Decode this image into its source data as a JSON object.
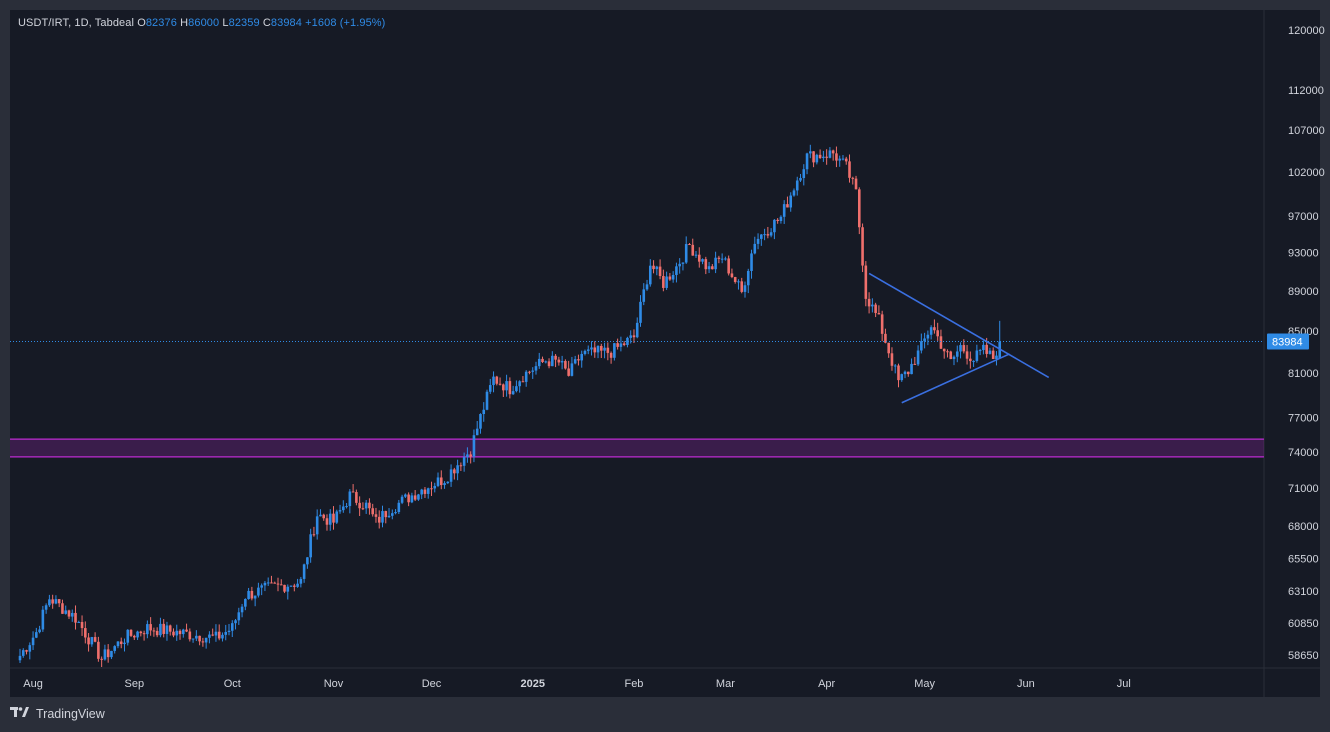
{
  "header": {
    "symbol": "USDT/IRT, 1D, Tabdeal",
    "o_label": "O",
    "o_value": "82376",
    "h_label": "H",
    "h_value": "86000",
    "l_label": "L",
    "l_value": "82359",
    "c_label": "C",
    "c_value": "83984",
    "change": "+1608 (+1.95%)"
  },
  "footer": {
    "brand": "TradingView"
  },
  "colors": {
    "background": "#161a25",
    "frame": "#2a2e39",
    "up": "#2f8be6",
    "down": "#ef6f6c",
    "zone": "#9c27b0",
    "trendline": "#3a6fe0",
    "price_label_bg": "#2f8be6",
    "axis_text": "#d1d4dc"
  },
  "chart_data": {
    "type": "candlestick",
    "title": "USDT/IRT, 1D, Tabdeal",
    "last_price": 83984,
    "price_ticks": [
      120000,
      112000,
      107000,
      102000,
      97000,
      93000,
      89000,
      85000,
      81000,
      77000,
      74000,
      71000,
      68000,
      65500,
      63100,
      60850,
      58650
    ],
    "date_ticks": [
      "Aug",
      "Sep",
      "Oct",
      "Nov",
      "Dec",
      "2025",
      "Feb",
      "Mar",
      "Apr",
      "May",
      "Jun",
      "Jul"
    ],
    "date_tick_dates": [
      "2024-08-01",
      "2024-09-01",
      "2024-10-01",
      "2024-11-01",
      "2024-12-01",
      "2025-01-01",
      "2025-02-01",
      "2025-03-01",
      "2025-04-01",
      "2025-05-01",
      "2025-06-01",
      "2025-07-01"
    ],
    "date_range": [
      "2024-07-28",
      "2025-07-28"
    ],
    "log_scale": true,
    "grid": false,
    "support_zone": {
      "low": 73600,
      "high": 75100
    },
    "triangle": {
      "upper_line": [
        [
          "2025-04-14",
          90800
        ],
        [
          "2025-06-08",
          80600
        ]
      ],
      "lower_line": [
        [
          "2025-04-24",
          78300
        ],
        [
          "2025-05-27",
          82800
        ]
      ]
    },
    "key_points": [
      [
        "2024-07-28",
        58600
      ],
      [
        "2024-08-02",
        60200
      ],
      [
        "2024-08-06",
        62600
      ],
      [
        "2024-08-14",
        61200
      ],
      [
        "2024-08-22",
        58400
      ],
      [
        "2024-08-29",
        59800
      ],
      [
        "2024-09-05",
        60500
      ],
      [
        "2024-09-26",
        59800
      ],
      [
        "2024-10-01",
        60500
      ],
      [
        "2024-10-05",
        62800
      ],
      [
        "2024-10-12",
        63300
      ],
      [
        "2024-10-22",
        63800
      ],
      [
        "2024-10-27",
        68900
      ],
      [
        "2024-11-01",
        68300
      ],
      [
        "2024-11-06",
        70400
      ],
      [
        "2024-11-11",
        69600
      ],
      [
        "2024-11-14",
        68300
      ],
      [
        "2024-11-18",
        69300
      ],
      [
        "2024-11-28",
        70900
      ],
      [
        "2024-12-05",
        71800
      ],
      [
        "2024-12-09",
        73000
      ],
      [
        "2024-12-13",
        74200
      ],
      [
        "2024-12-16",
        77000
      ],
      [
        "2024-12-20",
        80500
      ],
      [
        "2024-12-25",
        79600
      ],
      [
        "2024-12-29",
        80800
      ],
      [
        "2025-01-05",
        82200
      ],
      [
        "2025-01-09",
        82000
      ],
      [
        "2025-01-12",
        80800
      ],
      [
        "2025-01-16",
        82800
      ],
      [
        "2025-01-25",
        83000
      ],
      [
        "2025-02-01",
        84400
      ],
      [
        "2025-02-06",
        91800
      ],
      [
        "2025-02-10",
        89800
      ],
      [
        "2025-02-14",
        91500
      ],
      [
        "2025-02-18",
        93800
      ],
      [
        "2025-02-24",
        91200
      ],
      [
        "2025-02-28",
        92500
      ],
      [
        "2025-03-06",
        88800
      ],
      [
        "2025-03-10",
        94300
      ],
      [
        "2025-03-18",
        96800
      ],
      [
        "2025-03-26",
        103800
      ],
      [
        "2025-04-03",
        104200
      ],
      [
        "2025-04-07",
        102500
      ],
      [
        "2025-04-10",
        99500
      ],
      [
        "2025-04-13",
        88600
      ],
      [
        "2025-04-17",
        86000
      ],
      [
        "2025-04-23",
        80200
      ],
      [
        "2025-04-26",
        81200
      ],
      [
        "2025-04-30",
        83400
      ],
      [
        "2025-05-03",
        85600
      ],
      [
        "2025-05-06",
        83800
      ],
      [
        "2025-05-09",
        82000
      ],
      [
        "2025-05-12",
        83500
      ],
      [
        "2025-05-16",
        82300
      ],
      [
        "2025-05-19",
        83100
      ],
      [
        "2025-05-22",
        82400
      ],
      [
        "2025-05-24",
        83984
      ]
    ]
  }
}
